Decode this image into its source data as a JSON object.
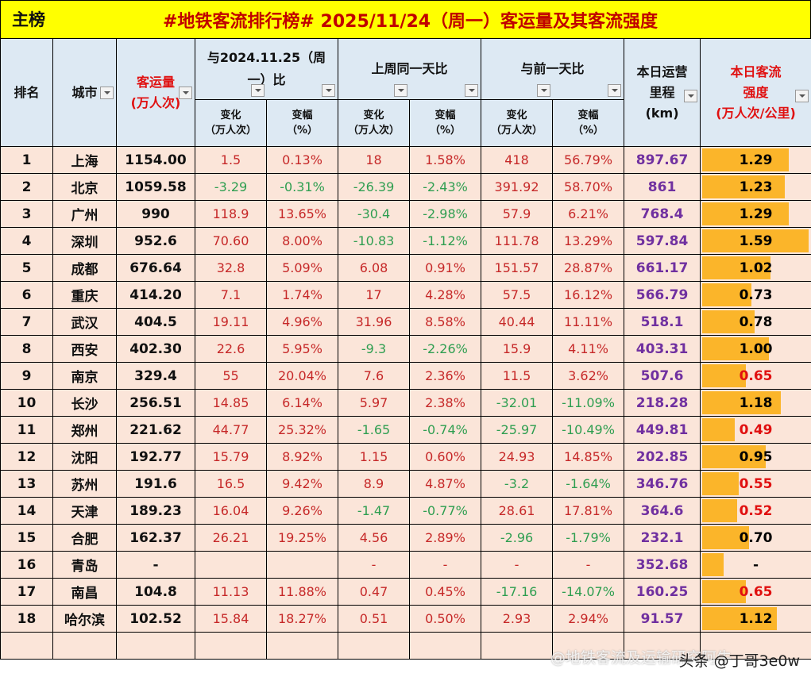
{
  "title": {
    "main_label": "主榜",
    "headline": "#地铁客流排行榜# 2025/11/24（周一）客运量及其客流强度"
  },
  "headers": {
    "rank": "排名",
    "city": "城市",
    "volume_line1": "客运量",
    "volume_line2": "(万人次)",
    "yoy_group": "与2024.11.25（周一）比",
    "wow_group": "上周同一天比",
    "dod_group": "与前一天比",
    "km_line1": "本日运营",
    "km_line2": "里程",
    "km_line3": "(km)",
    "intensity_line1": "本日客流",
    "intensity_line2": "强度",
    "intensity_line3": "(万人次/公里)",
    "change_line1": "变化",
    "change_line2": "（万人次）",
    "pct_line1": "变幅",
    "pct_line2": "（%）"
  },
  "colors": {
    "title_bg": "#ffff00",
    "title_text": "#c00000",
    "header_bg": "#dde9f3",
    "row_bg": "#fbe5d9",
    "positive": "#c62828",
    "negative": "#2e9e50",
    "km": "#7030a0",
    "bar": "#fbb52a"
  },
  "rows": [
    {
      "rank": "1",
      "city": "上海",
      "volume": "1154.00",
      "yoy_change": "1.5",
      "yoy_pct": "0.13%",
      "wow_change": "18",
      "wow_pct": "1.58%",
      "dod_change": "418",
      "dod_pct": "56.79%",
      "km": "897.67",
      "intensity": "1.29"
    },
    {
      "rank": "2",
      "city": "北京",
      "volume": "1059.58",
      "yoy_change": "-3.29",
      "yoy_pct": "-0.31%",
      "wow_change": "-26.39",
      "wow_pct": "-2.43%",
      "dod_change": "391.92",
      "dod_pct": "58.70%",
      "km": "861",
      "intensity": "1.23"
    },
    {
      "rank": "3",
      "city": "广州",
      "volume": "990",
      "yoy_change": "118.9",
      "yoy_pct": "13.65%",
      "wow_change": "-30.4",
      "wow_pct": "-2.98%",
      "dod_change": "57.9",
      "dod_pct": "6.21%",
      "km": "768.4",
      "intensity": "1.29"
    },
    {
      "rank": "4",
      "city": "深圳",
      "volume": "952.6",
      "yoy_change": "70.60",
      "yoy_pct": "8.00%",
      "wow_change": "-10.83",
      "wow_pct": "-1.12%",
      "dod_change": "111.78",
      "dod_pct": "13.29%",
      "km": "597.84",
      "intensity": "1.59"
    },
    {
      "rank": "5",
      "city": "成都",
      "volume": "676.64",
      "yoy_change": "32.8",
      "yoy_pct": "5.09%",
      "wow_change": "6.08",
      "wow_pct": "0.91%",
      "dod_change": "151.57",
      "dod_pct": "28.87%",
      "km": "661.17",
      "intensity": "1.02"
    },
    {
      "rank": "6",
      "city": "重庆",
      "volume": "414.20",
      "yoy_change": "7.1",
      "yoy_pct": "1.74%",
      "wow_change": "17",
      "wow_pct": "4.28%",
      "dod_change": "57.5",
      "dod_pct": "16.12%",
      "km": "566.79",
      "intensity": "0.73"
    },
    {
      "rank": "7",
      "city": "武汉",
      "volume": "404.5",
      "yoy_change": "19.11",
      "yoy_pct": "4.96%",
      "wow_change": "31.96",
      "wow_pct": "8.58%",
      "dod_change": "40.44",
      "dod_pct": "11.11%",
      "km": "518.1",
      "intensity": "0.78"
    },
    {
      "rank": "8",
      "city": "西安",
      "volume": "402.30",
      "yoy_change": "22.6",
      "yoy_pct": "5.95%",
      "wow_change": "-9.3",
      "wow_pct": "-2.26%",
      "dod_change": "15.9",
      "dod_pct": "4.11%",
      "km": "403.31",
      "intensity": "1.00"
    },
    {
      "rank": "9",
      "city": "南京",
      "volume": "329.4",
      "yoy_change": "55",
      "yoy_pct": "20.04%",
      "wow_change": "7.6",
      "wow_pct": "2.36%",
      "dod_change": "11.5",
      "dod_pct": "3.62%",
      "km": "507.6",
      "intensity": "0.65"
    },
    {
      "rank": "10",
      "city": "长沙",
      "volume": "256.51",
      "yoy_change": "14.85",
      "yoy_pct": "6.14%",
      "wow_change": "5.97",
      "wow_pct": "2.38%",
      "dod_change": "-32.01",
      "dod_pct": "-11.09%",
      "km": "218.28",
      "intensity": "1.18"
    },
    {
      "rank": "11",
      "city": "郑州",
      "volume": "221.62",
      "yoy_change": "44.77",
      "yoy_pct": "25.32%",
      "wow_change": "-1.65",
      "wow_pct": "-0.74%",
      "dod_change": "-25.97",
      "dod_pct": "-10.49%",
      "km": "449.81",
      "intensity": "0.49"
    },
    {
      "rank": "12",
      "city": "沈阳",
      "volume": "192.77",
      "yoy_change": "15.79",
      "yoy_pct": "8.92%",
      "wow_change": "1.15",
      "wow_pct": "0.60%",
      "dod_change": "24.93",
      "dod_pct": "14.85%",
      "km": "202.85",
      "intensity": "0.95"
    },
    {
      "rank": "13",
      "city": "苏州",
      "volume": "191.6",
      "yoy_change": "16.5",
      "yoy_pct": "9.42%",
      "wow_change": "8.9",
      "wow_pct": "4.87%",
      "dod_change": "-3.2",
      "dod_pct": "-1.64%",
      "km": "346.76",
      "intensity": "0.55"
    },
    {
      "rank": "14",
      "city": "天津",
      "volume": "189.23",
      "yoy_change": "16.04",
      "yoy_pct": "9.26%",
      "wow_change": "-1.47",
      "wow_pct": "-0.77%",
      "dod_change": "28.61",
      "dod_pct": "17.81%",
      "km": "364.6",
      "intensity": "0.52"
    },
    {
      "rank": "15",
      "city": "合肥",
      "volume": "162.37",
      "yoy_change": "26.21",
      "yoy_pct": "19.25%",
      "wow_change": "4.56",
      "wow_pct": "2.89%",
      "dod_change": "-2.96",
      "dod_pct": "-1.79%",
      "km": "232.1",
      "intensity": "0.70"
    },
    {
      "rank": "16",
      "city": "青岛",
      "volume": "-",
      "yoy_change": "",
      "yoy_pct": "",
      "wow_change": "-",
      "wow_pct": "-",
      "dod_change": "-",
      "dod_pct": "-",
      "km": "352.68",
      "intensity": "-"
    },
    {
      "rank": "17",
      "city": "南昌",
      "volume": "104.8",
      "yoy_change": "11.13",
      "yoy_pct": "11.88%",
      "wow_change": "0.47",
      "wow_pct": "0.45%",
      "dod_change": "-17.16",
      "dod_pct": "-14.07%",
      "km": "160.25",
      "intensity": "0.65"
    },
    {
      "rank": "18",
      "city": "哈尔滨",
      "volume": "102.52",
      "yoy_change": "15.84",
      "yoy_pct": "18.27%",
      "wow_change": "0.51",
      "wow_pct": "0.50%",
      "dod_change": "2.93",
      "dod_pct": "2.94%",
      "km": "91.57",
      "intensity": "1.12"
    }
  ],
  "watermarks": {
    "toutiao": "头条 @丁哥3e0w",
    "weibo": "@地铁客流及运输研究阿牛"
  }
}
